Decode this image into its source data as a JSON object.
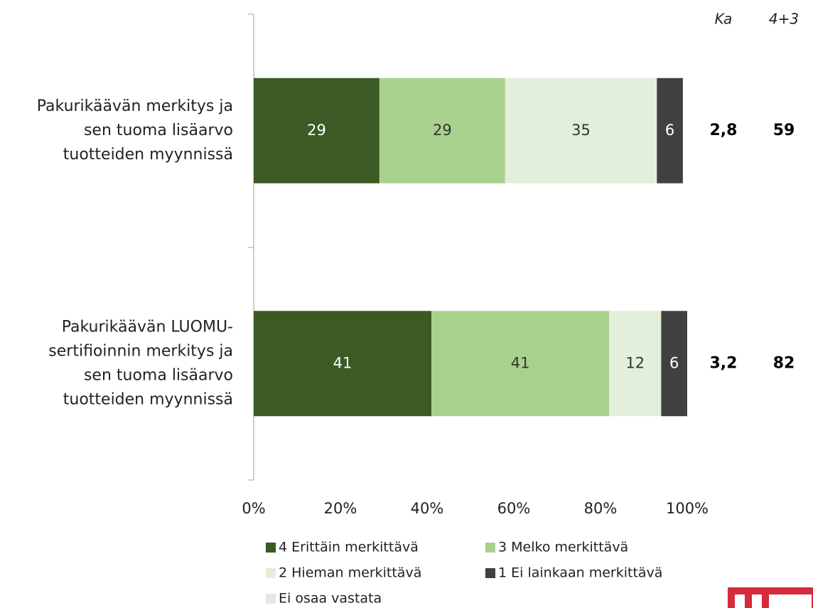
{
  "chart_data": {
    "type": "stacked-barh",
    "categories": [
      [
        "Pakurikäävän merkitys ja",
        "sen tuoma lisäarvo",
        "tuotteiden myynnissä"
      ],
      [
        "Pakurikäävän LUOMU-",
        "sertifioinnin merkitys ja",
        "sen tuoma lisäarvo",
        "tuotteiden myynnissä"
      ]
    ],
    "series": [
      {
        "name": "4 Erittäin merkittävä",
        "color": "#3b5a24",
        "label_color": "#ffffff",
        "values": [
          29,
          41
        ]
      },
      {
        "name": "3 Melko merkittävä",
        "color": "#a9d18e",
        "label_color": "#333333",
        "values": [
          29,
          41
        ]
      },
      {
        "name": "2 Hieman merkittävä",
        "color": "#e2efda",
        "label_color": "#333333",
        "values": [
          35,
          12
        ]
      },
      {
        "name": "1 Ei lainkaan merkittävä",
        "color": "#404040",
        "label_color": "#ffffff",
        "values": [
          6,
          6
        ]
      },
      {
        "name": "Ei osaa vastata",
        "color": "#e7e6e6",
        "label_color": "#333333",
        "values": [
          0,
          0
        ]
      }
    ],
    "xlim": [
      0,
      100
    ],
    "xticks": [
      {
        "value": 0,
        "label": "0%"
      },
      {
        "value": 20,
        "label": "20%"
      },
      {
        "value": 40,
        "label": "40%"
      },
      {
        "value": 60,
        "label": "60%"
      },
      {
        "value": 80,
        "label": "80%"
      },
      {
        "value": 100,
        "label": "100%"
      }
    ],
    "columns": [
      {
        "header": "Ka",
        "values": [
          2.8,
          3.2
        ],
        "value_labels": [
          "2,8",
          "3,2"
        ]
      },
      {
        "header": "4+3",
        "values": [
          59,
          82
        ]
      }
    ]
  }
}
